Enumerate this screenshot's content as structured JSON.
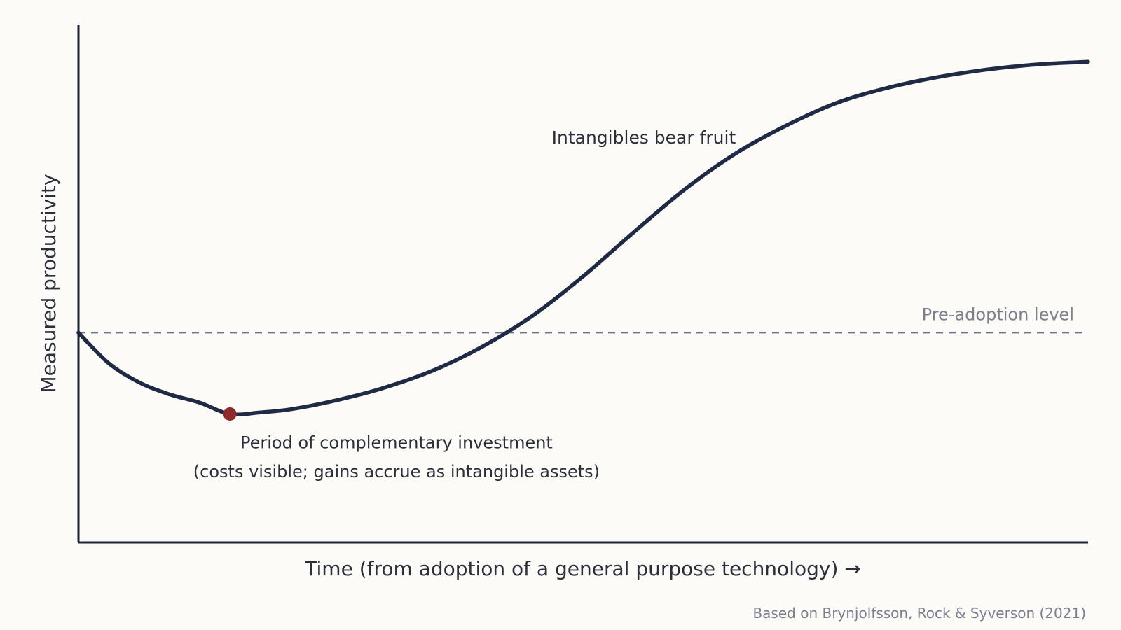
{
  "chart_data": {
    "type": "line",
    "xlabel": "Time (from adoption of a general purpose technology) →",
    "ylabel": "Measured productivity",
    "xlim": [
      0,
      100
    ],
    "ylim": [
      0,
      100
    ],
    "grid": false,
    "reference_line": {
      "label": "Pre-adoption level",
      "y": 40.5,
      "color": "#6f7385"
    },
    "series": [
      {
        "color": "#1f2a44",
        "x": [
          0,
          3,
          6,
          9,
          12,
          15,
          18,
          21,
          25,
          30,
          35,
          40,
          45,
          50,
          55,
          60,
          65,
          70,
          75,
          80,
          85,
          90,
          95,
          100
        ],
        "y": [
          40.5,
          34.6,
          30.9,
          28.6,
          27.0,
          24.8,
          25.1,
          25.7,
          27.2,
          29.7,
          33.1,
          37.8,
          43.8,
          51.4,
          59.9,
          68.1,
          75.0,
          80.4,
          84.8,
          87.7,
          89.8,
          91.3,
          92.3,
          92.8
        ]
      }
    ],
    "highlight_point": {
      "x": 15,
      "y": 24.8,
      "color": "#8e2a2c"
    },
    "annotations": [
      {
        "text": "Intangibles bear fruit",
        "x": 56,
        "y": 77
      },
      {
        "text": "Period of complementary investment",
        "x": 31.5,
        "y": 18.2
      },
      {
        "text": "(costs visible; gains accrue as intangible assets)",
        "x": 31.5,
        "y": 12.6
      }
    ],
    "source": "Based on Brynjolfsson, Rock & Syverson (2021)"
  }
}
